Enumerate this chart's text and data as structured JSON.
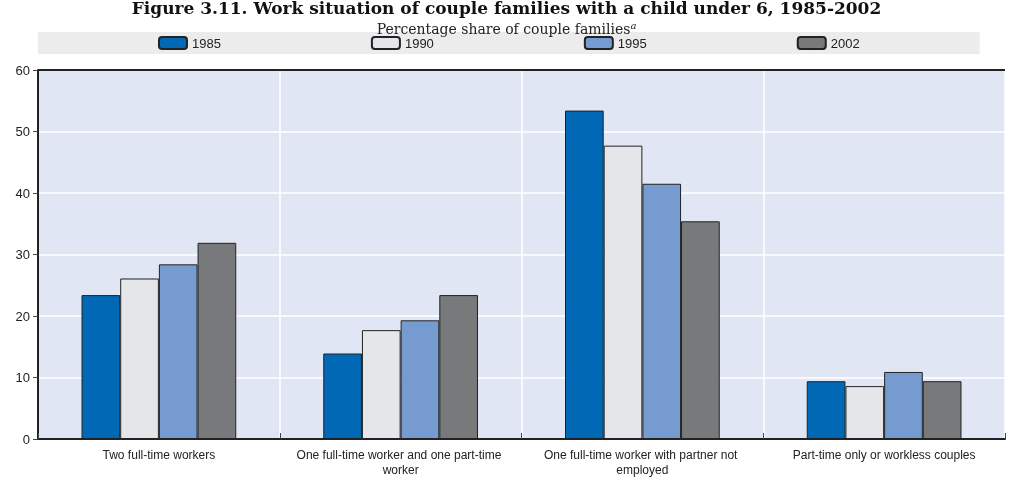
{
  "chart_data": {
    "type": "bar",
    "title": "Figure 3.11. Work situation of couple families with a child under 6, 1985-2002",
    "subtitle": "Percentage share of couple families$^{a}$",
    "categories": [
      "Two full-time workers",
      "One full-time worker and one part-time worker",
      "One full-time worker with partner not employed",
      "Part-time only or workless couples"
    ],
    "series": [
      {
        "name": "1985",
        "color": "#0068b4",
        "values": [
          23.4,
          13.9,
          53.4,
          9.4
        ]
      },
      {
        "name": "1990",
        "color": "#e5e6e9",
        "values": [
          26.1,
          17.7,
          47.7,
          8.6
        ]
      },
      {
        "name": "1995",
        "color": "#759bd0",
        "values": [
          28.4,
          19.3,
          41.5,
          10.9
        ]
      },
      {
        "name": "2002",
        "color": "#78797b",
        "values": [
          31.9,
          23.4,
          35.4,
          9.4
        ]
      }
    ],
    "ylim": [
      0,
      60
    ],
    "yticks": [
      0,
      10,
      20,
      30,
      40,
      50,
      60
    ],
    "grid": true,
    "legend": "top"
  }
}
